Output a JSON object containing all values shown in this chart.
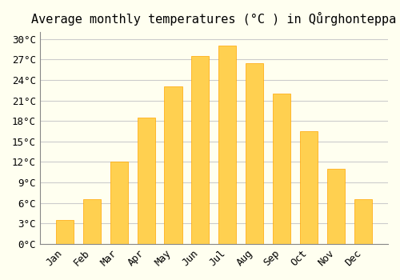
{
  "title": "Average monthly temperatures (°C ) in Qůrghonteppa",
  "months": [
    "Jan",
    "Feb",
    "Mar",
    "Apr",
    "May",
    "Jun",
    "Jul",
    "Aug",
    "Sep",
    "Oct",
    "Nov",
    "Dec"
  ],
  "values": [
    3.5,
    6.5,
    12.0,
    18.5,
    23.0,
    27.5,
    29.0,
    26.5,
    22.0,
    16.5,
    11.0,
    6.5
  ],
  "bar_color": "#FFA500",
  "bar_color_light": "#FFD050",
  "ylim": [
    0,
    31
  ],
  "yticks": [
    0,
    3,
    6,
    9,
    12,
    15,
    18,
    21,
    24,
    27,
    30
  ],
  "ytick_labels": [
    "0°C",
    "3°C",
    "6°C",
    "9°C",
    "12°C",
    "15°C",
    "18°C",
    "21°C",
    "24°C",
    "27°C",
    "30°C"
  ],
  "background_color": "#FFFFF0",
  "grid_color": "#CCCCCC",
  "title_fontsize": 11,
  "tick_fontsize": 9
}
